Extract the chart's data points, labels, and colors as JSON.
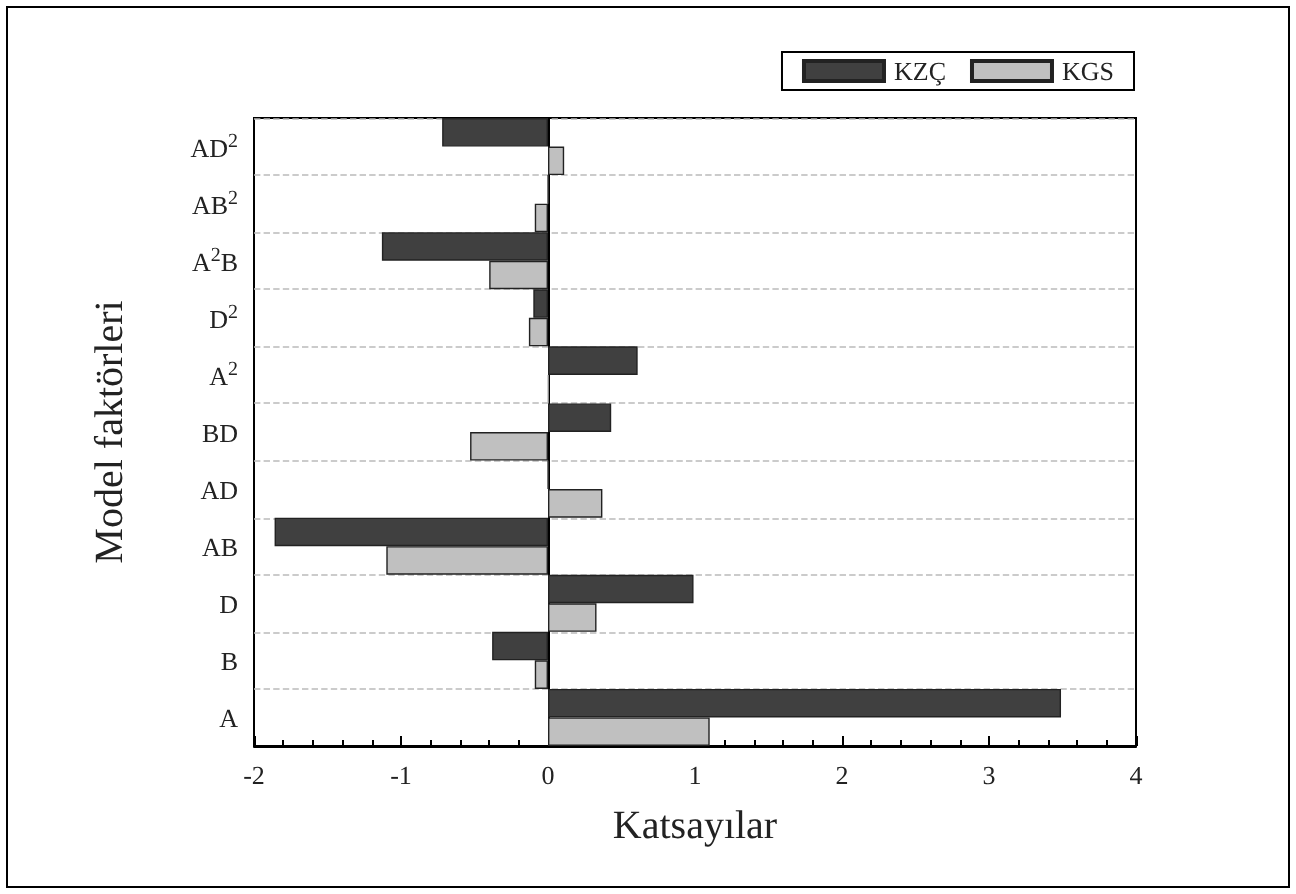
{
  "chart_data": {
    "type": "bar",
    "orientation": "horizontal",
    "xlabel": "Katsayılar",
    "ylabel": "Model faktörleri",
    "categories": [
      "AD$^{2}$",
      "AB$^{2}$",
      "A$^{2}$B",
      "D$^{2}$",
      "A$^{2}$",
      "BD",
      "AD",
      "AB",
      "D",
      "B",
      "A"
    ],
    "series": [
      {
        "name": "KZÇ",
        "color": "#404040",
        "values": [
          -0.72,
          0,
          -1.13,
          -0.1,
          0.61,
          0.43,
          0,
          -1.86,
          0.99,
          -0.38,
          3.49
        ]
      },
      {
        "name": "KGS",
        "color": "#c0c0c0",
        "values": [
          0.11,
          -0.09,
          -0.4,
          -0.13,
          0,
          -0.53,
          0.37,
          -1.1,
          0.33,
          -0.09,
          1.1
        ]
      }
    ],
    "xlim": [
      -2,
      4
    ],
    "xticks": [
      -2,
      -1,
      0,
      1,
      2,
      3,
      4
    ],
    "grid": "y",
    "legend": "top right"
  }
}
